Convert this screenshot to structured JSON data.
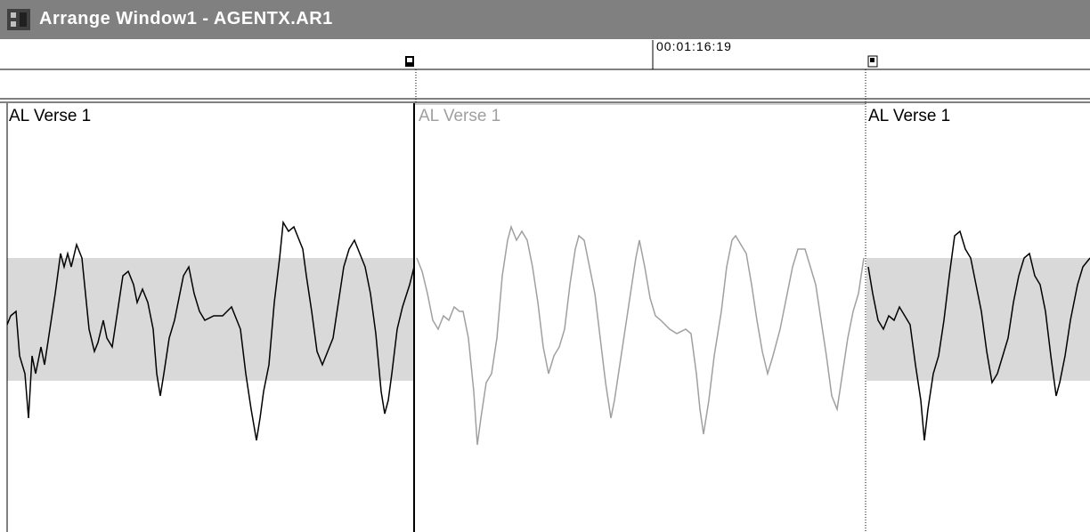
{
  "title_bar": {
    "title": "Arrange Window1 - AGENTX.AR1"
  },
  "ruler": {
    "position": "00:01:16:19"
  },
  "track": {
    "segments": [
      {
        "label": "AL Verse 1"
      },
      {
        "label": "AL Verse 1"
      },
      {
        "label": "AL Verse 1"
      }
    ]
  }
}
